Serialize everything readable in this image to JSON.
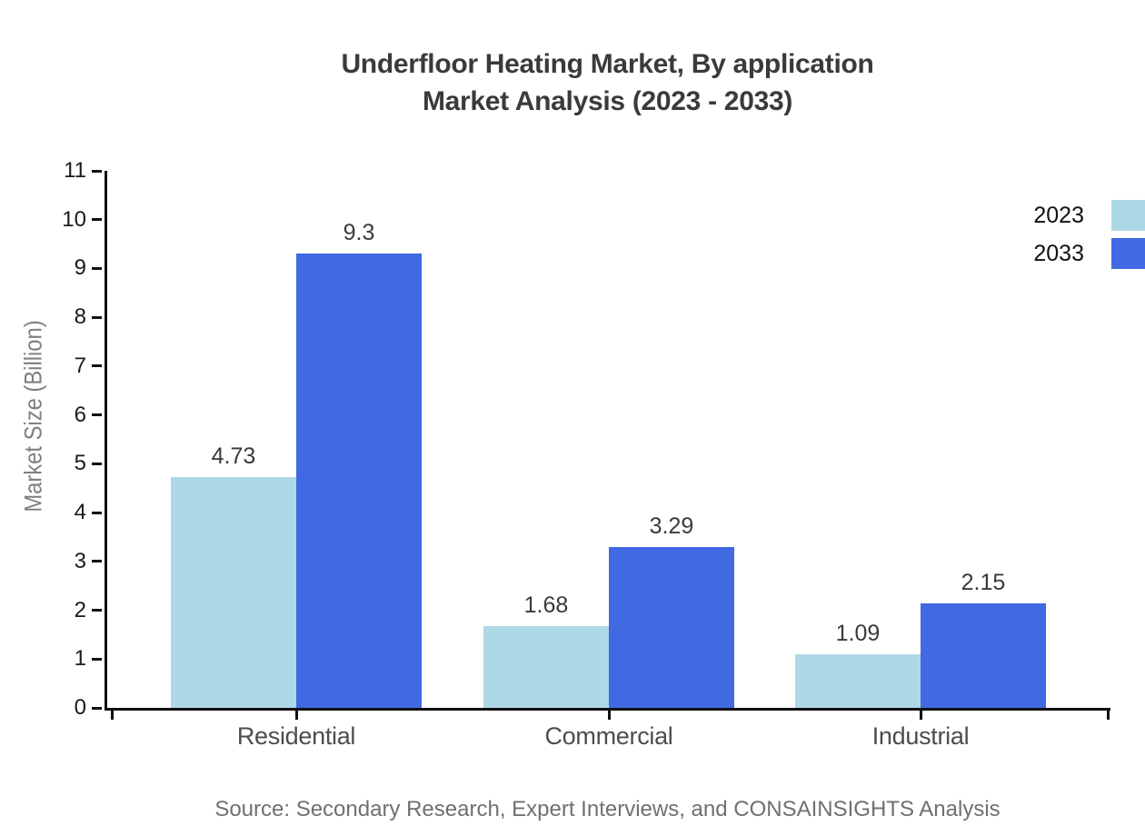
{
  "chart_data": {
    "type": "bar",
    "title": {
      "line1": "Underfloor Heating Market, By application",
      "line2": "Market Analysis (2023 - 2033)"
    },
    "categories": [
      "Residential",
      "Commercial",
      "Industrial"
    ],
    "series": [
      {
        "name": "2023",
        "color": "#ADD8E6",
        "values": [
          4.73,
          1.68,
          1.09
        ]
      },
      {
        "name": "2033",
        "color": "#4169E1",
        "values": [
          9.3,
          3.29,
          2.15
        ]
      }
    ],
    "xlabel": "",
    "ylabel": "Market Size (Billion)",
    "ylim": [
      0,
      11
    ],
    "yticks": [
      0,
      1,
      2,
      3,
      4,
      5,
      6,
      7,
      8,
      9,
      10,
      11
    ],
    "grid": false,
    "legend_position": "upper-right-edge"
  },
  "source_note": "Source: Secondary Research, Expert Interviews, and CONSAINSIGHTS Analysis",
  "colors": {
    "series_2023": "#ADD8E6",
    "series_2033": "#4169E1",
    "axis": "#111111",
    "title_text": "#3a3a3a",
    "category_text": "#4d4d4d",
    "axis_label_text": "#7f7f7f",
    "source_text": "#707070"
  }
}
